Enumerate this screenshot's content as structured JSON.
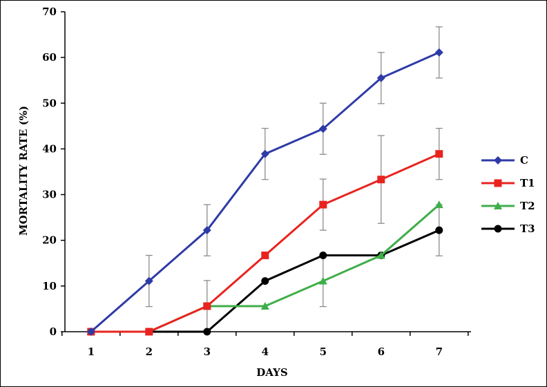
{
  "chart_data": {
    "type": "line",
    "xlabel": "DAYS",
    "ylabel": "MORTALITY RATE (%)",
    "x": [
      1,
      2,
      3,
      4,
      5,
      6,
      7
    ],
    "xlim": [
      0.55,
      7.55
    ],
    "ylim": [
      0,
      70
    ],
    "yticks": [
      0,
      10,
      20,
      30,
      40,
      50,
      60,
      70
    ],
    "grid": false,
    "legend_position": "right",
    "series": [
      {
        "name": "C",
        "color": "#2e3aa6",
        "marker": "diamond",
        "values": [
          0,
          11.1,
          22.2,
          38.9,
          44.4,
          55.5,
          61.1
        ],
        "errors": [
          0,
          5.6,
          5.6,
          5.6,
          5.6,
          5.6,
          5.6
        ]
      },
      {
        "name": "T1",
        "color": "#e8231f",
        "marker": "square",
        "values": [
          0,
          0,
          5.6,
          16.7,
          27.8,
          33.3,
          38.9
        ],
        "errors": [
          0,
          0,
          5.6,
          0,
          5.6,
          9.6,
          5.6
        ]
      },
      {
        "name": "T2",
        "color": "#3fae49",
        "marker": "triangle",
        "values": [
          0,
          0,
          5.6,
          5.6,
          11.1,
          16.7,
          27.8
        ],
        "errors": [
          0,
          0,
          0,
          0,
          5.6,
          0,
          0
        ]
      },
      {
        "name": "T3",
        "color": "#000000",
        "marker": "circle",
        "values": [
          0,
          0,
          0,
          11.1,
          16.7,
          16.7,
          22.2
        ],
        "errors": [
          0,
          0,
          0,
          0,
          0,
          0,
          5.6
        ]
      }
    ]
  }
}
